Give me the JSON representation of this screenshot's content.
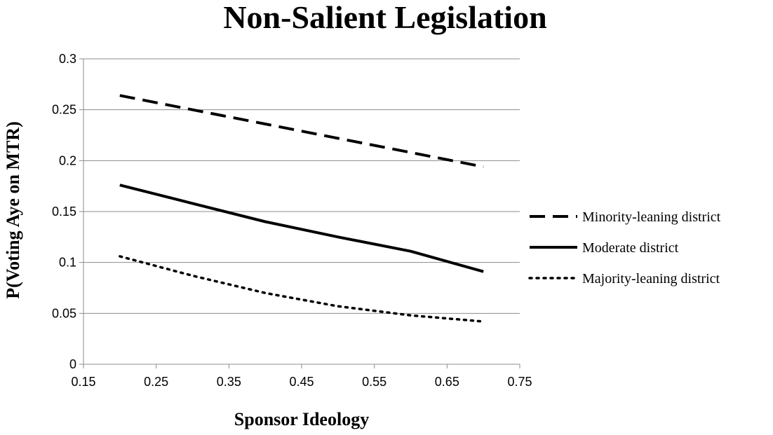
{
  "chart_data": {
    "type": "line",
    "title": "Non-Salient Legislation",
    "xlabel": "Sponsor Ideology",
    "ylabel": "P(Voting Aye on MTR)",
    "xlim": [
      0.15,
      0.75
    ],
    "ylim": [
      0,
      0.3
    ],
    "x_ticks": [
      "0.15",
      "0.25",
      "0.35",
      "0.45",
      "0.55",
      "0.65",
      "0.75"
    ],
    "y_ticks": [
      "0",
      "0.05",
      "0.1",
      "0.15",
      "0.2",
      "0.25",
      "0.3"
    ],
    "grid": "horizontal",
    "legend_position": "right",
    "series": [
      {
        "name": "Minority-leaning district",
        "style": "dashed",
        "color": "#000000",
        "x": [
          0.2,
          0.3,
          0.4,
          0.5,
          0.6,
          0.7
        ],
        "y": [
          0.264,
          0.25,
          0.236,
          0.222,
          0.208,
          0.194
        ]
      },
      {
        "name": "Moderate district",
        "style": "solid",
        "color": "#000000",
        "x": [
          0.2,
          0.3,
          0.4,
          0.5,
          0.6,
          0.7
        ],
        "y": [
          0.176,
          0.158,
          0.14,
          0.125,
          0.111,
          0.091
        ]
      },
      {
        "name": "Majority-leaning district",
        "style": "dotted",
        "color": "#000000",
        "x": [
          0.2,
          0.3,
          0.4,
          0.5,
          0.6,
          0.7
        ],
        "y": [
          0.106,
          0.087,
          0.07,
          0.057,
          0.048,
          0.042
        ]
      }
    ]
  }
}
